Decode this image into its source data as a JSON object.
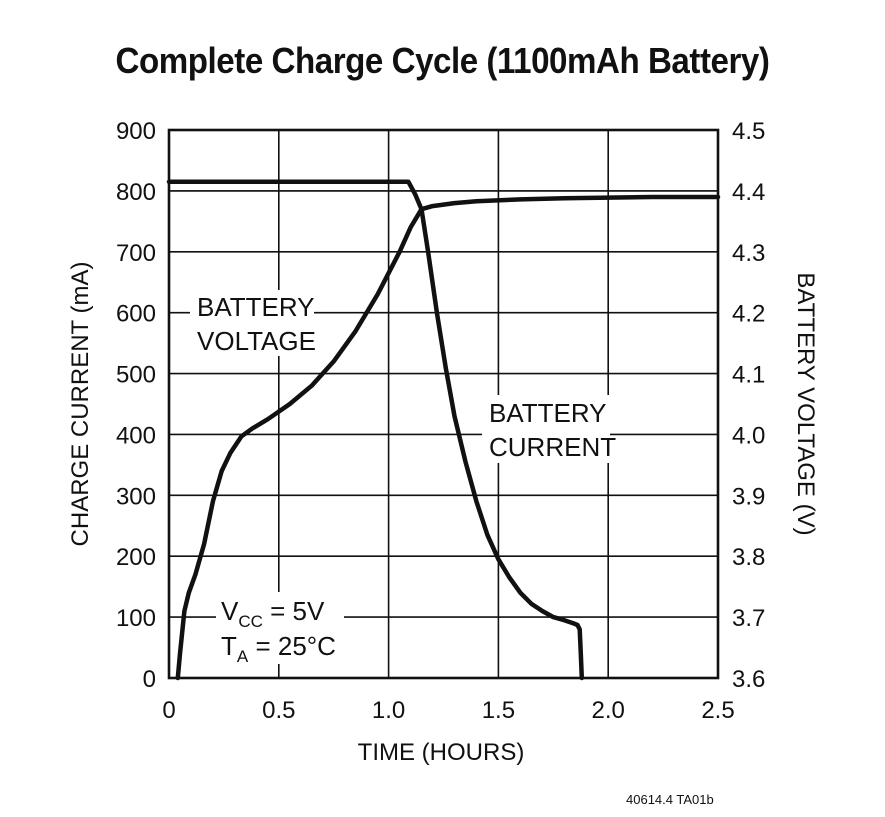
{
  "chart_data": {
    "type": "line",
    "title": "Complete Charge Cycle (1100mAh Battery)",
    "xlabel": "TIME (HOURS)",
    "ylabel_left": "CHARGE CURRENT (mA)",
    "ylabel_right": "BATTERY VOLTAGE (V)",
    "xlim": [
      0,
      2.5
    ],
    "ylim_left": [
      0,
      900
    ],
    "ylim_right": [
      3.6,
      4.5
    ],
    "x_ticks": [
      "0",
      "0.5",
      "1.0",
      "1.5",
      "2.0",
      "2.5"
    ],
    "y_left_ticks": [
      "0",
      "100",
      "200",
      "300",
      "400",
      "500",
      "600",
      "700",
      "800",
      "900"
    ],
    "y_right_ticks": [
      "3.6",
      "3.7",
      "3.8",
      "3.9",
      "4.0",
      "4.1",
      "4.2",
      "4.3",
      "4.4",
      "4.5"
    ],
    "grid": true,
    "series": [
      {
        "name": "BATTERY CURRENT",
        "axis": "left",
        "color": "#111111",
        "x": [
          0,
          1.09,
          1.12,
          1.15,
          1.18,
          1.22,
          1.26,
          1.3,
          1.35,
          1.4,
          1.45,
          1.5,
          1.55,
          1.6,
          1.65,
          1.7,
          1.75,
          1.8,
          1.84,
          1.86,
          1.87,
          1.875,
          1.88
        ],
        "values": [
          815,
          815,
          795,
          770,
          700,
          600,
          510,
          430,
          355,
          290,
          235,
          195,
          165,
          140,
          122,
          110,
          100,
          95,
          90,
          87,
          80,
          40,
          0
        ]
      },
      {
        "name": "BATTERY VOLTAGE",
        "axis": "right",
        "color": "#111111",
        "x": [
          0.04,
          0.05,
          0.07,
          0.09,
          0.12,
          0.16,
          0.2,
          0.24,
          0.28,
          0.33,
          0.38,
          0.45,
          0.55,
          0.65,
          0.75,
          0.85,
          0.95,
          1.05,
          1.1,
          1.15,
          1.2,
          1.3,
          1.4,
          1.6,
          1.8,
          2.0,
          2.2,
          2.5
        ],
        "values": [
          3.6,
          3.64,
          3.71,
          3.74,
          3.77,
          3.82,
          3.89,
          3.94,
          3.97,
          3.997,
          4.01,
          4.025,
          4.05,
          4.08,
          4.12,
          4.17,
          4.23,
          4.3,
          4.34,
          4.37,
          4.375,
          4.38,
          4.383,
          4.386,
          4.388,
          4.389,
          4.39,
          4.39
        ]
      }
    ],
    "annotations": {
      "voltage_label": [
        "BATTERY",
        "VOLTAGE"
      ],
      "current_label": [
        "BATTERY",
        "CURRENT"
      ],
      "vcc": {
        "symbol": "V",
        "subscript": "CC",
        "rest": " = 5V"
      },
      "ta": {
        "symbol": "T",
        "subscript": "A",
        "rest": " = 25°C"
      },
      "ref_line_value": 800
    }
  },
  "reference_code": "40614.4 TA01b"
}
